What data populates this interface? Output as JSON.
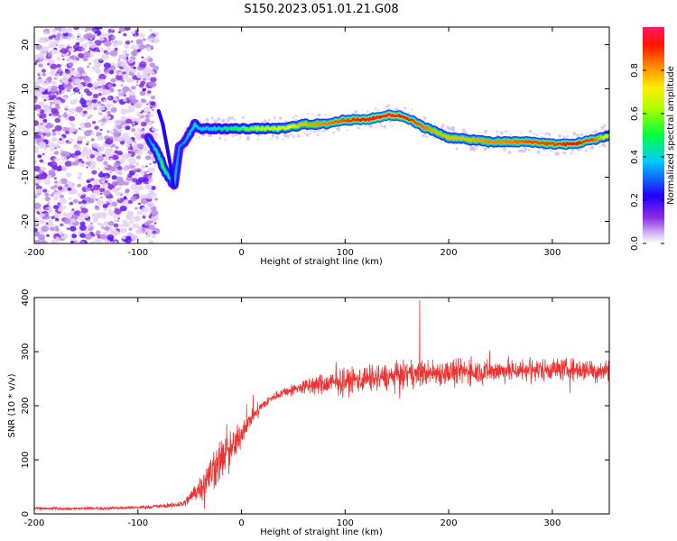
{
  "title": "S150.2023.051.01.21.G08",
  "chart_data": [
    {
      "type": "heatmap",
      "xlabel": "Height of straight line (km)",
      "ylabel": "Frequency (Hz)",
      "xlim": [
        -200,
        355
      ],
      "ylim": [
        -25,
        24
      ],
      "xticks": [
        -200,
        -100,
        0,
        100,
        200,
        300
      ],
      "yticks": [
        -20,
        -10,
        0,
        10,
        20
      ],
      "grid": false,
      "colorbar": {
        "label": "Normalized spectral amplitude",
        "range": [
          0,
          1
        ],
        "ticks": [
          "0.0",
          "0.2",
          "0.4",
          "0.6",
          "0.8"
        ],
        "colormap": "rainbow-violet-to-pink"
      },
      "noise_region_x": [
        -200,
        -90
      ],
      "ridge": {
        "x": [
          -90,
          -80,
          -75,
          -70,
          -65,
          -60,
          -55,
          -50,
          -45,
          -40,
          -30,
          -20,
          0,
          20,
          40,
          60,
          80,
          100,
          120,
          140,
          150,
          160,
          170,
          180,
          190,
          200,
          220,
          240,
          260,
          280,
          300,
          320,
          340,
          355
        ],
        "y": [
          -1,
          -5,
          -8,
          -10,
          -12,
          -3,
          -2,
          0,
          2,
          1,
          1,
          1,
          1,
          1,
          1,
          2,
          2,
          3,
          3,
          4,
          4,
          3.5,
          2,
          1,
          0,
          -1,
          -1.5,
          -2,
          -2,
          -2,
          -2.5,
          -2.5,
          -1.5,
          -0.5
        ],
        "amp": [
          0.2,
          0.35,
          0.45,
          0.35,
          0.3,
          0.25,
          0.25,
          0.3,
          0.3,
          0.3,
          0.3,
          0.35,
          0.45,
          0.55,
          0.6,
          0.7,
          0.75,
          0.8,
          0.85,
          0.9,
          0.9,
          0.85,
          0.8,
          0.75,
          0.7,
          0.7,
          0.7,
          0.75,
          0.75,
          0.8,
          0.8,
          0.85,
          0.8,
          0.6
        ]
      }
    },
    {
      "type": "line",
      "xlabel": "Height of straight line (km)",
      "ylabel": "SNR (10 * v/v)",
      "xlim": [
        -200,
        355
      ],
      "ylim": [
        0,
        400
      ],
      "xticks": [
        -200,
        -100,
        0,
        100,
        200,
        300
      ],
      "yticks": [
        0,
        100,
        200,
        300,
        400
      ],
      "grid": false,
      "series_color": "#ee3333",
      "trend": {
        "x": [
          -200,
          -150,
          -100,
          -70,
          -55,
          -45,
          -35,
          -25,
          -15,
          -5,
          0,
          10,
          20,
          30,
          40,
          50,
          60,
          80,
          100,
          120,
          150,
          170,
          200,
          250,
          300,
          355
        ],
        "y": [
          10,
          10,
          12,
          15,
          20,
          40,
          60,
          90,
          110,
          130,
          150,
          180,
          200,
          215,
          225,
          230,
          235,
          240,
          245,
          250,
          255,
          260,
          262,
          265,
          268,
          265
        ],
        "noise_amplitude": [
          4,
          4,
          4,
          6,
          10,
          25,
          45,
          60,
          55,
          45,
          30,
          20,
          15,
          12,
          12,
          15,
          20,
          30,
          35,
          35,
          35,
          35,
          35,
          30,
          30,
          30
        ]
      },
      "annotations": {
        "peak_x": 172,
        "peak_y": 395
      }
    }
  ]
}
